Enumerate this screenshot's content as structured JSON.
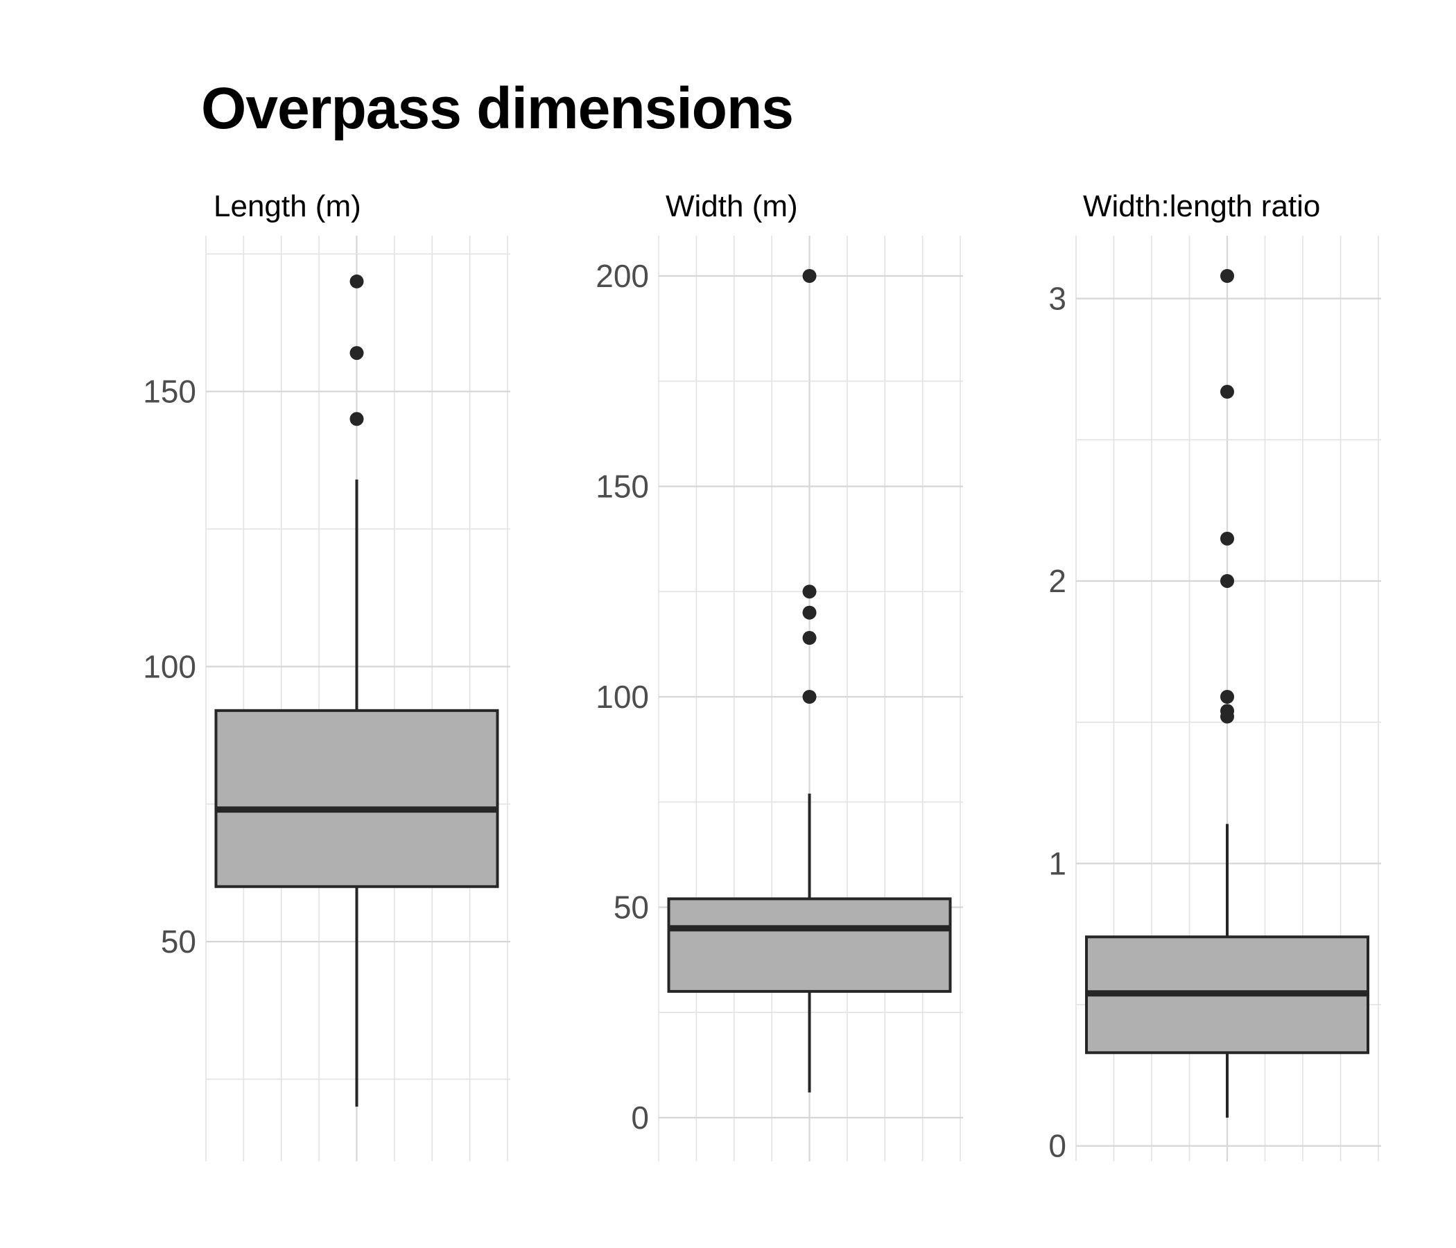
{
  "title": "Overpass dimensions",
  "chart_data": {
    "type": "box",
    "title": "Overpass dimensions",
    "grid": true,
    "colors": {
      "box_fill": "#b0b0b0",
      "line": "#262626",
      "grid": "#d6d6d6",
      "tick_text": "#4d4d4d"
    },
    "panels": [
      {
        "title": "Length (m)",
        "ylim": [
          18,
          171
        ],
        "yticks": [
          50,
          100,
          150
        ],
        "box": {
          "min": 20,
          "q1": 60,
          "median": 74,
          "q3": 92,
          "max": 134
        },
        "outliers": [
          170,
          157,
          145
        ]
      },
      {
        "title": "Width (m)",
        "ylim": [
          0,
          200
        ],
        "yticks": [
          0,
          50,
          100,
          150,
          200
        ],
        "box": {
          "min": 6,
          "q1": 30,
          "median": 45,
          "q3": 52,
          "max": 77
        },
        "outliers": [
          200,
          125,
          120,
          114,
          100
        ]
      },
      {
        "title": "Width:length ratio",
        "ylim": [
          0.1,
          3.08
        ],
        "yticks": [
          0,
          1,
          2,
          3
        ],
        "box": {
          "min": 0.1,
          "q1": 0.33,
          "median": 0.54,
          "q3": 0.74,
          "max": 1.14
        },
        "outliers": [
          3.08,
          2.67,
          2.15,
          2.0,
          1.59,
          1.54,
          1.52
        ]
      }
    ]
  }
}
